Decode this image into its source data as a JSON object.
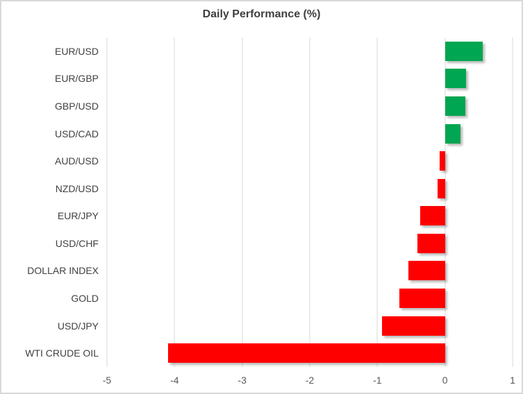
{
  "chart": {
    "title": "Daily Performance (%)"
  },
  "colors": {
    "positive": "#00A651",
    "negative": "#FF0000",
    "gridline": "#D9D9D9",
    "border": "#D9D9D9",
    "title_text": "#3F3F3F",
    "label_text": "#404040",
    "tick_text": "#595959"
  },
  "chart_data": {
    "type": "bar",
    "orientation": "horizontal",
    "title": "Daily Performance (%)",
    "categories": [
      "EUR/USD",
      "EUR/GBP",
      "GBP/USD",
      "USD/CAD",
      "AUD/USD",
      "NZD/USD",
      "EUR/JPY",
      "USD/CHF",
      "DOLLAR INDEX",
      "GOLD",
      "USD/JPY",
      "WTI CRUDE OIL"
    ],
    "values": [
      0.56,
      0.31,
      0.3,
      0.23,
      -0.08,
      -0.11,
      -0.37,
      -0.41,
      -0.54,
      -0.67,
      -0.93,
      -4.1
    ],
    "xlabel": "",
    "ylabel": "",
    "xlim": [
      -5,
      1
    ],
    "xticks": [
      -5,
      -4,
      -3,
      -2,
      -1,
      0,
      1
    ],
    "grid": "vertical-only",
    "legend": "none",
    "color_rule": "green for positive values, red for negative values"
  }
}
